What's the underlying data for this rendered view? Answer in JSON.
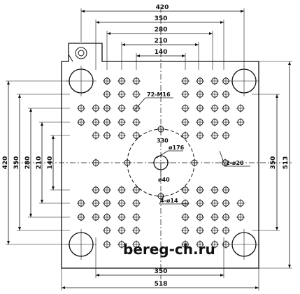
{
  "dimensions": {
    "top": [
      "420",
      "350",
      "280",
      "210",
      "140"
    ],
    "bottom": [
      "350",
      "518"
    ],
    "left": [
      "420",
      "350",
      "280",
      "210",
      "140"
    ],
    "right": [
      "350",
      "513"
    ]
  },
  "callouts": {
    "threaded_holes": "72-M16",
    "center_diameter": "ø176",
    "pin_circle_diameter": "330",
    "center_bore": "ø40",
    "ejector_holes": "4-ø14",
    "side_holes": "2-ø20"
  },
  "watermark": "bereg-ch.ru"
}
